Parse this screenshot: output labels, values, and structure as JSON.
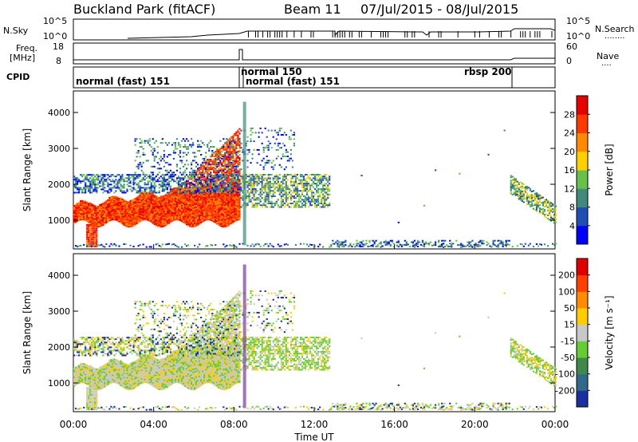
{
  "title": {
    "station": "Buckland Park (fitACF)",
    "beam": "Beam 11",
    "dates": "07/Jul/2015 - 08/Jul/2015"
  },
  "header": {
    "nsky_label": "N.Sky",
    "nsearch_label": "N.Search",
    "nsearch_dots": "........",
    "nsky_ticks": [
      "10^5",
      "10^0"
    ],
    "nsearch_ticks": [
      "10^5",
      "10^0"
    ],
    "freq_label": "Freq.",
    "freq_unit": "[MHz]",
    "freq_ticks": [
      "18",
      "8"
    ],
    "nave_label": "Nave",
    "nave_dots": "....",
    "nave_ticks": [
      "60",
      "0"
    ],
    "cpid_label": "CPID"
  },
  "cpid_segments": [
    {
      "label": "normal (fast) 151",
      "start_hr": 0.0
    },
    {
      "label": "normal 150",
      "start_hr": 8.3
    },
    {
      "label": "normal (fast) 151",
      "start_hr": 8.5
    },
    {
      "label": "rbsp 200",
      "start_hr": 21.9
    }
  ],
  "chart_data": [
    {
      "type": "heatmap",
      "name": "power",
      "ylabel": "Slant Range [km]",
      "yticks": [
        "1000",
        "2000",
        "3000",
        "4000"
      ],
      "ylim": [
        200,
        4600
      ],
      "colorbar_label": "Power [dB]",
      "colorbar_ticks": [
        "4",
        "8",
        "12",
        "16",
        "20",
        "24",
        "28"
      ],
      "colorbar_colors": [
        "#0000ff",
        "#1f4fb5",
        "#3f8a7a",
        "#66c04a",
        "#ffd000",
        "#ff8a00",
        "#ff3a00",
        "#e60000"
      ]
    },
    {
      "type": "heatmap",
      "name": "velocity",
      "ylabel": "Slant Range [km]",
      "yticks": [
        "1000",
        "2000",
        "3000",
        "4000"
      ],
      "ylim": [
        200,
        4600
      ],
      "colorbar_label": "Velocity [m s⁻¹]",
      "colorbar_ticks": [
        "200",
        "100",
        "50",
        "15",
        "-15",
        "-50",
        "-100",
        "-200"
      ],
      "colorbar_colors": [
        "#1a2fa0",
        "#2f6a8a",
        "#3f8a4a",
        "#66cc33",
        "#c8c8c8",
        "#ffcc00",
        "#ff8c00",
        "#ff4000",
        "#e00000"
      ]
    }
  ],
  "xaxis": {
    "label": "Time UT",
    "ticks": [
      "00:00",
      "04:00",
      "08:00",
      "12:00",
      "16:00",
      "20:00",
      "00:00"
    ]
  }
}
